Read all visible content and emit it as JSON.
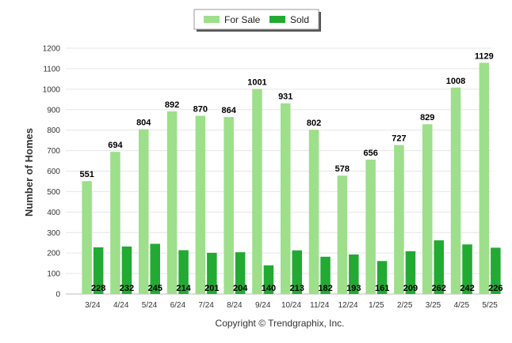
{
  "chart_data": {
    "type": "bar",
    "categories": [
      "3/24",
      "4/24",
      "5/24",
      "6/24",
      "7/24",
      "8/24",
      "9/24",
      "10/24",
      "11/24",
      "12/24",
      "1/25",
      "2/25",
      "3/25",
      "4/25",
      "5/25"
    ],
    "series": [
      {
        "name": "For Sale",
        "color": "#9ddf8a",
        "values": [
          551,
          694,
          804,
          892,
          870,
          864,
          1001,
          931,
          802,
          578,
          656,
          727,
          829,
          1008,
          1129
        ]
      },
      {
        "name": "Sold",
        "color": "#22aa33",
        "values": [
          228,
          232,
          245,
          214,
          201,
          204,
          140,
          213,
          182,
          193,
          161,
          209,
          262,
          242,
          226
        ]
      }
    ],
    "ylabel": "Number of Homes",
    "ylim": [
      0,
      1200
    ],
    "yticks": [
      0,
      100,
      200,
      300,
      400,
      500,
      600,
      700,
      800,
      900,
      1000,
      1100,
      1200
    ],
    "grid": true,
    "legend_position": "top-center"
  },
  "footer": {
    "copyright": "Copyright © Trendgraphix, Inc."
  }
}
